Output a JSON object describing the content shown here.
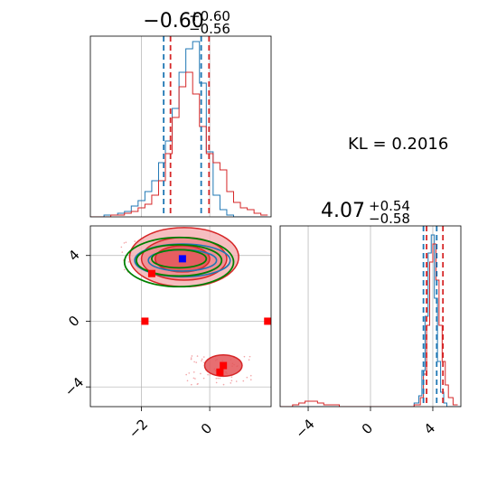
{
  "chart_data": {
    "type": "corner",
    "annotation": "KL = 0.2016",
    "colors": {
      "series_a": "#1f77b4",
      "series_b": "#d62728",
      "contour_c": "#008000",
      "truth": "#0000ff"
    },
    "panels": {
      "hist_x": {
        "title_main": "−0.60",
        "title_sup": "+0.60",
        "title_sub": "−0.56",
        "xlim": [
          -3.5,
          1.8
        ],
        "quantiles_blue": [
          -1.35,
          -0.25
        ],
        "quantiles_red": [
          -1.15,
          -0.02
        ],
        "hist_blue": {
          "x": [
            -3.5,
            -3.3,
            -3.1,
            -2.9,
            -2.7,
            -2.5,
            -2.3,
            -2.1,
            -1.9,
            -1.7,
            -1.5,
            -1.3,
            -1.1,
            -0.9,
            -0.7,
            -0.5,
            -0.3,
            -0.1,
            0.1,
            0.3,
            0.5,
            0.7,
            0.9,
            1.1,
            1.3,
            1.5
          ],
          "y": [
            0,
            0,
            0.01,
            0.01,
            0.02,
            0.03,
            0.06,
            0.09,
            0.14,
            0.2,
            0.3,
            0.42,
            0.6,
            0.8,
            0.93,
            0.97,
            0.74,
            0.36,
            0.12,
            0.04,
            0.01,
            0,
            0,
            0,
            0,
            0
          ]
        },
        "hist_red": {
          "x": [
            -3.5,
            -3.3,
            -3.1,
            -2.9,
            -2.7,
            -2.5,
            -2.3,
            -2.1,
            -1.9,
            -1.7,
            -1.5,
            -1.3,
            -1.1,
            -0.9,
            -0.7,
            -0.5,
            -0.3,
            -0.1,
            0.1,
            0.3,
            0.5,
            0.7,
            0.9,
            1.1,
            1.3,
            1.5
          ],
          "y": [
            0,
            0,
            0,
            0.01,
            0.01,
            0.02,
            0.03,
            0.05,
            0.07,
            0.12,
            0.2,
            0.35,
            0.55,
            0.72,
            0.8,
            0.68,
            0.5,
            0.35,
            0.3,
            0.26,
            0.14,
            0.08,
            0.05,
            0.04,
            0.02,
            0.01
          ]
        }
      },
      "scatter": {
        "xlim": [
          -3.5,
          1.8
        ],
        "ylim": [
          -5.2,
          5.8
        ],
        "xticks": [
          -2,
          0
        ],
        "yticks": [
          4,
          0,
          -4
        ],
        "xtick_labels": [
          "−2",
          "0"
        ],
        "ytick_labels": [
          "4",
          "0",
          "−4"
        ],
        "truth_point": [
          -0.8,
          3.8
        ],
        "red_markers": [
          [
            -1.7,
            2.9
          ],
          [
            -1.9,
            0
          ],
          [
            1.7,
            0
          ],
          [
            0.4,
            -2.7
          ],
          [
            0.3,
            -3.1
          ]
        ],
        "contours_red": [
          {
            "cx": -0.75,
            "cy": 3.9,
            "rx": 1.6,
            "ry": 1.8
          },
          {
            "cx": -0.75,
            "cy": 3.8,
            "rx": 1.25,
            "ry": 1.3
          },
          {
            "cx": -0.8,
            "cy": 3.8,
            "rx": 0.8,
            "ry": 0.8
          },
          {
            "cx": 0.4,
            "cy": -2.7,
            "rx": 0.55,
            "ry": 0.65
          }
        ],
        "contours_blue": [
          {
            "cx": -0.8,
            "cy": 3.7,
            "rx": 1.4,
            "ry": 1.0
          },
          {
            "cx": -0.8,
            "cy": 3.7,
            "rx": 1.0,
            "ry": 0.65
          }
        ],
        "contours_green": [
          {
            "cx": -0.9,
            "cy": 3.6,
            "rx": 1.6,
            "ry": 1.5
          },
          {
            "cx": -0.9,
            "cy": 3.7,
            "rx": 1.25,
            "ry": 0.95
          },
          {
            "cx": -0.9,
            "cy": 3.8,
            "rx": 0.8,
            "ry": 0.55
          }
        ]
      },
      "hist_y": {
        "title_main": "4.07",
        "title_sup": "+0.54",
        "title_sub": "−0.58",
        "xlim": [
          -5.8,
          5.8
        ],
        "xticks": [
          -4,
          0,
          4
        ],
        "xtick_labels": [
          "−4",
          "0",
          "4"
        ],
        "quantiles_blue": [
          3.4,
          4.25
        ],
        "quantiles_red": [
          3.6,
          4.65
        ],
        "hist_blue": {
          "x": [
            -5.8,
            -4.8,
            -3.8,
            -2.8,
            -1.8,
            -0.8,
            0.2,
            1.2,
            2.2,
            2.8,
            3.1,
            3.3,
            3.5,
            3.7,
            3.9,
            4.1,
            4.3,
            4.5,
            4.7,
            4.9,
            5.1,
            5.5
          ],
          "y": [
            0,
            0,
            0,
            0,
            0,
            0,
            0,
            0,
            0,
            0.02,
            0.06,
            0.2,
            0.5,
            0.85,
            0.95,
            0.6,
            0.25,
            0.08,
            0.02,
            0,
            0,
            0
          ]
        },
        "hist_red": {
          "x": [
            -5.8,
            -5.0,
            -4.6,
            -4.2,
            -3.8,
            -3.4,
            -3.0,
            -2.0,
            0.0,
            2.0,
            2.8,
            3.2,
            3.4,
            3.6,
            3.8,
            4.0,
            4.2,
            4.4,
            4.6,
            4.8,
            5.0,
            5.3
          ],
          "y": [
            0,
            0.01,
            0.02,
            0.03,
            0.03,
            0.02,
            0.01,
            0,
            0,
            0,
            0.01,
            0.05,
            0.18,
            0.45,
            0.8,
            0.9,
            0.7,
            0.45,
            0.25,
            0.12,
            0.05,
            0.01
          ]
        }
      }
    }
  }
}
